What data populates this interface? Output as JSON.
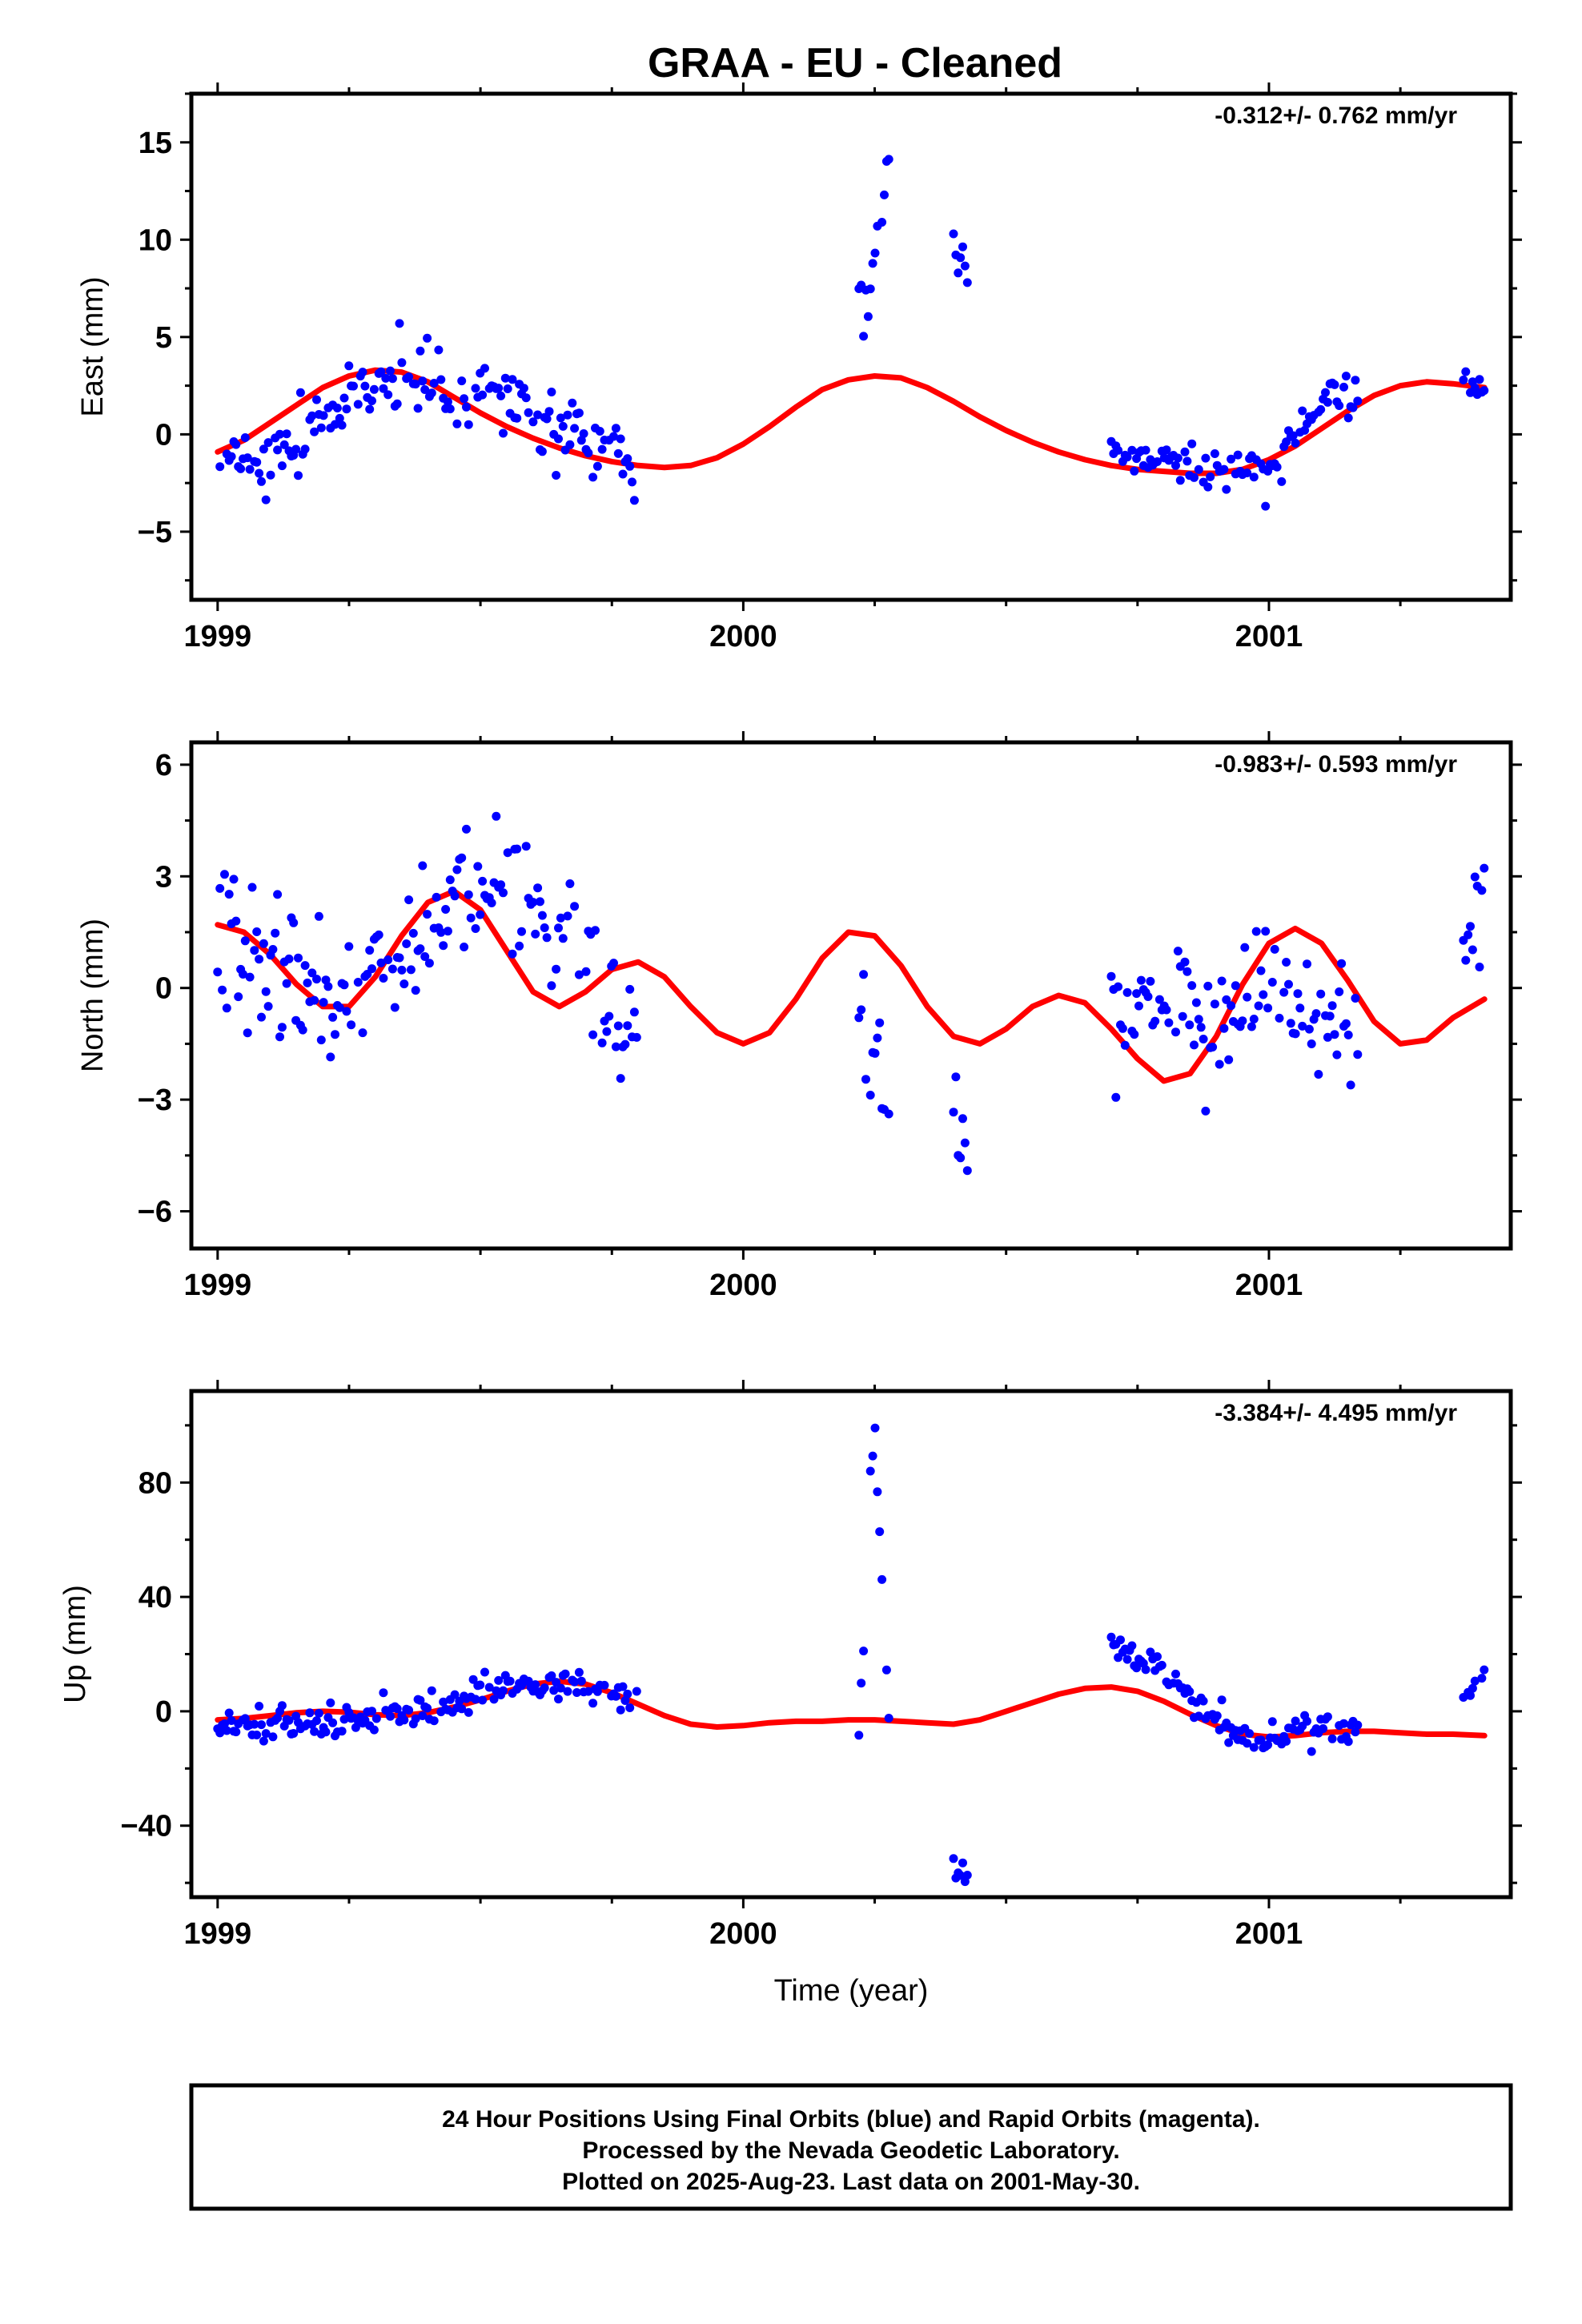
{
  "title": "GRAA  - EU - Cleaned",
  "xlabel": "Time (year)",
  "footer": {
    "line1": "24 Hour Positions Using Final Orbits (blue) and Rapid Orbits (magenta).",
    "line2": "Processed by the Nevada Geodetic Laboratory.",
    "line3": "Plotted on 2025-Aug-23. Last data on 2001-May-30."
  },
  "colors": {
    "points": "#0000ff",
    "fit": "#ff0000",
    "frame": "#000000"
  },
  "chart_data": [
    {
      "type": "scatter",
      "ylabel": "East (mm)",
      "rate": "-0.312+/- 0.762 mm/yr",
      "xlim": [
        1998.95,
        2001.46
      ],
      "ylim": [
        -8.5,
        17.5
      ],
      "x_ticks": [
        1999,
        2000,
        2001
      ],
      "x_tick_labels": [
        "1999",
        "2000",
        "2001"
      ],
      "y_ticks": [
        -5,
        0,
        5,
        10,
        15
      ],
      "y_tick_labels": [
        "−5",
        "0",
        "5",
        "10",
        "15"
      ],
      "series": [
        {
          "kind": "points",
          "segments": [
            {
              "start": 1999.0,
              "end": 1999.8,
              "mean": [
                [
                  1999.0,
                  -2.0
                ],
                [
                  1999.1,
                  -1.2
                ],
                [
                  1999.2,
                  0.5
                ],
                [
                  1999.3,
                  2.5
                ],
                [
                  1999.35,
                  3.5
                ],
                [
                  1999.45,
                  1.5
                ],
                [
                  1999.5,
                  2.5
                ],
                [
                  1999.6,
                  1.0
                ],
                [
                  1999.7,
                  0.0
                ],
                [
                  1999.8,
                  -2.5
                ]
              ],
              "scatter": 1.6
            },
            {
              "start": 2000.22,
              "end": 2000.28,
              "mean": [
                [
                  2000.22,
                  5.0
                ],
                [
                  2000.27,
                  12.0
                ]
              ],
              "scatter": 2.5
            },
            {
              "start": 2000.4,
              "end": 2000.43,
              "mean": [
                [
                  2000.4,
                  9.5
                ],
                [
                  2000.43,
                  8.0
                ]
              ],
              "scatter": 1.0
            },
            {
              "start": 2000.7,
              "end": 2001.17,
              "mean": [
                [
                  2000.7,
                  -1.0
                ],
                [
                  2000.85,
                  -1.5
                ],
                [
                  2001.0,
                  -2.0
                ],
                [
                  2001.05,
                  0.0
                ],
                [
                  2001.1,
                  1.5
                ],
                [
                  2001.17,
                  2.5
                ]
              ],
              "scatter": 1.0
            },
            {
              "start": 2001.37,
              "end": 2001.41,
              "mean": [
                [
                  2001.37,
                  3.0
                ],
                [
                  2001.41,
                  2.2
                ]
              ],
              "scatter": 0.6
            }
          ]
        },
        {
          "kind": "fit",
          "x": [
            1999.0,
            1999.05,
            1999.1,
            1999.15,
            1999.2,
            1999.25,
            1999.3,
            1999.35,
            1999.4,
            1999.45,
            1999.5,
            1999.55,
            1999.6,
            1999.65,
            1999.7,
            1999.75,
            1999.8,
            1999.85,
            1999.9,
            1999.95,
            2000.0,
            2000.05,
            2000.1,
            2000.15,
            2000.2,
            2000.25,
            2000.3,
            2000.35,
            2000.4,
            2000.45,
            2000.5,
            2000.55,
            2000.6,
            2000.65,
            2000.7,
            2000.75,
            2000.8,
            2000.85,
            2000.9,
            2000.95,
            2001.0,
            2001.05,
            2001.1,
            2001.15,
            2001.2,
            2001.25,
            2001.3,
            2001.35,
            2001.41
          ],
          "y": [
            -0.9,
            -0.3,
            0.6,
            1.5,
            2.4,
            3.0,
            3.3,
            3.2,
            2.7,
            1.9,
            1.1,
            0.4,
            -0.2,
            -0.7,
            -1.1,
            -1.4,
            -1.6,
            -1.7,
            -1.6,
            -1.2,
            -0.5,
            0.4,
            1.4,
            2.3,
            2.8,
            3.0,
            2.9,
            2.4,
            1.7,
            0.9,
            0.2,
            -0.4,
            -0.9,
            -1.3,
            -1.6,
            -1.8,
            -1.9,
            -2.0,
            -2.0,
            -1.8,
            -1.3,
            -0.6,
            0.3,
            1.2,
            2.0,
            2.5,
            2.7,
            2.6,
            2.4
          ]
        }
      ]
    },
    {
      "type": "scatter",
      "ylabel": "North (mm)",
      "rate": "-0.983+/- 0.593 mm/yr",
      "xlim": [
        1998.95,
        2001.46
      ],
      "ylim": [
        -7.0,
        6.6
      ],
      "x_ticks": [
        1999,
        2000,
        2001
      ],
      "x_tick_labels": [
        "1999",
        "2000",
        "2001"
      ],
      "y_ticks": [
        -6,
        -3,
        0,
        3,
        6
      ],
      "y_tick_labels": [
        "−6",
        "−3",
        "0",
        "3",
        "6"
      ],
      "series": [
        {
          "kind": "points",
          "segments": [
            {
              "start": 1999.0,
              "end": 1999.8,
              "mean": [
                [
                  1999.0,
                  1.5
                ],
                [
                  1999.1,
                  0.5
                ],
                [
                  1999.2,
                  -0.5
                ],
                [
                  1999.3,
                  0.0
                ],
                [
                  1999.4,
                  1.5
                ],
                [
                  1999.5,
                  2.5
                ],
                [
                  1999.6,
                  2.5
                ],
                [
                  1999.7,
                  0.5
                ],
                [
                  1999.8,
                  -1.5
                ]
              ],
              "scatter": 1.5
            },
            {
              "start": 2000.22,
              "end": 2000.28,
              "mean": [
                [
                  2000.22,
                  -1.0
                ],
                [
                  2000.28,
                  -3.0
                ]
              ],
              "scatter": 1.5
            },
            {
              "start": 2000.4,
              "end": 2000.43,
              "mean": [
                [
                  2000.4,
                  -3.0
                ],
                [
                  2000.43,
                  -4.5
                ]
              ],
              "scatter": 1.0
            },
            {
              "start": 2000.7,
              "end": 2001.17,
              "mean": [
                [
                  2000.7,
                  -0.5
                ],
                [
                  2000.8,
                  -0.5
                ],
                [
                  2000.9,
                  -1.0
                ],
                [
                  2001.0,
                  0.0
                ],
                [
                  2001.1,
                  -0.5
                ],
                [
                  2001.17,
                  -1.5
                ]
              ],
              "scatter": 1.2
            },
            {
              "start": 2001.37,
              "end": 2001.41,
              "mean": [
                [
                  2001.37,
                  1.5
                ],
                [
                  2001.41,
                  3.0
                ]
              ],
              "scatter": 1.0
            }
          ]
        },
        {
          "kind": "fit",
          "x": [
            1999.0,
            1999.05,
            1999.1,
            1999.15,
            1999.2,
            1999.25,
            1999.3,
            1999.35,
            1999.4,
            1999.45,
            1999.5,
            1999.55,
            1999.6,
            1999.65,
            1999.7,
            1999.75,
            1999.8,
            1999.85,
            1999.9,
            1999.95,
            2000.0,
            2000.05,
            2000.1,
            2000.15,
            2000.2,
            2000.25,
            2000.3,
            2000.35,
            2000.4,
            2000.45,
            2000.5,
            2000.55,
            2000.6,
            2000.65,
            2000.7,
            2000.75,
            2000.8,
            2000.85,
            2000.9,
            2000.95,
            2001.0,
            2001.05,
            2001.1,
            2001.15,
            2001.2,
            2001.25,
            2001.3,
            2001.35,
            2001.41
          ],
          "y": [
            1.7,
            1.5,
            0.9,
            0.1,
            -0.5,
            -0.5,
            0.3,
            1.4,
            2.3,
            2.6,
            2.1,
            1.0,
            -0.1,
            -0.5,
            -0.1,
            0.5,
            0.7,
            0.3,
            -0.5,
            -1.2,
            -1.5,
            -1.2,
            -0.3,
            0.8,
            1.5,
            1.4,
            0.6,
            -0.5,
            -1.3,
            -1.5,
            -1.1,
            -0.5,
            -0.2,
            -0.4,
            -1.1,
            -1.9,
            -2.5,
            -2.3,
            -1.3,
            0.1,
            1.2,
            1.6,
            1.2,
            0.2,
            -0.9,
            -1.5,
            -1.4,
            -0.8,
            -0.3
          ]
        }
      ]
    },
    {
      "type": "scatter",
      "ylabel": "Up (mm)",
      "rate": "-3.384+/- 4.495 mm/yr",
      "xlim": [
        1998.95,
        2001.46
      ],
      "ylim": [
        -65,
        112
      ],
      "x_ticks": [
        1999,
        2000,
        2001
      ],
      "x_tick_labels": [
        "1999",
        "2000",
        "2001"
      ],
      "y_ticks": [
        -40,
        0,
        40,
        80
      ],
      "y_tick_labels": [
        "−40",
        "0",
        "40",
        "80"
      ],
      "series": [
        {
          "kind": "points",
          "segments": [
            {
              "start": 1999.0,
              "end": 1999.8,
              "mean": [
                [
                  1999.0,
                  -5.0
                ],
                [
                  1999.1,
                  -6.0
                ],
                [
                  1999.2,
                  -5.0
                ],
                [
                  1999.3,
                  -2.0
                ],
                [
                  1999.4,
                  0.0
                ],
                [
                  1999.5,
                  8.0
                ],
                [
                  1999.6,
                  9.0
                ],
                [
                  1999.7,
                  8.0
                ],
                [
                  1999.8,
                  4.0
                ]
              ],
              "scatter": 5.0
            },
            {
              "start": 2000.22,
              "end": 2000.28,
              "mean": [
                [
                  2000.22,
                  -10.0
                ],
                [
                  2000.25,
                  100.0
                ],
                [
                  2000.28,
                  -20.0
                ]
              ],
              "scatter": 8.0
            },
            {
              "start": 2000.4,
              "end": 2000.43,
              "mean": [
                [
                  2000.4,
                  -55.0
                ],
                [
                  2000.43,
                  -58.0
                ]
              ],
              "scatter": 3.0
            },
            {
              "start": 2000.7,
              "end": 2001.17,
              "mean": [
                [
                  2000.7,
                  25.0
                ],
                [
                  2000.8,
                  15.0
                ],
                [
                  2000.88,
                  0.0
                ],
                [
                  2000.95,
                  -8.0
                ],
                [
                  2001.05,
                  -8.0
                ],
                [
                  2001.17,
                  -5.0
                ]
              ],
              "scatter": 5.0
            },
            {
              "start": 2001.37,
              "end": 2001.41,
              "mean": [
                [
                  2001.37,
                  5.0
                ],
                [
                  2001.41,
                  15.0
                ]
              ],
              "scatter": 4.0
            }
          ]
        },
        {
          "kind": "fit",
          "x": [
            1999.0,
            1999.05,
            1999.1,
            1999.15,
            1999.2,
            1999.25,
            1999.3,
            1999.35,
            1999.4,
            1999.45,
            1999.5,
            1999.55,
            1999.6,
            1999.65,
            1999.7,
            1999.75,
            1999.8,
            1999.85,
            1999.9,
            1999.95,
            2000.0,
            2000.05,
            2000.1,
            2000.15,
            2000.2,
            2000.25,
            2000.3,
            2000.35,
            2000.4,
            2000.45,
            2000.5,
            2000.55,
            2000.6,
            2000.65,
            2000.7,
            2000.75,
            2000.8,
            2000.85,
            2000.9,
            2000.95,
            2001.0,
            2001.05,
            2001.1,
            2001.15,
            2001.2,
            2001.25,
            2001.3,
            2001.35,
            2001.41
          ],
          "y": [
            -3,
            -2.5,
            -1.5,
            -0.5,
            0,
            -0.3,
            -1.2,
            -1.5,
            -0.5,
            1.5,
            4,
            7,
            9.5,
            10.5,
            9.5,
            6.5,
            2.5,
            -1.5,
            -4.5,
            -5.5,
            -5,
            -4,
            -3.5,
            -3.5,
            -3,
            -3,
            -3.5,
            -4,
            -4.5,
            -3,
            0,
            3,
            6,
            8,
            8.5,
            7,
            3.5,
            -1,
            -5,
            -8,
            -9,
            -8.5,
            -7.5,
            -7,
            -7,
            -7.5,
            -8,
            -8,
            -8.5
          ]
        }
      ]
    }
  ]
}
